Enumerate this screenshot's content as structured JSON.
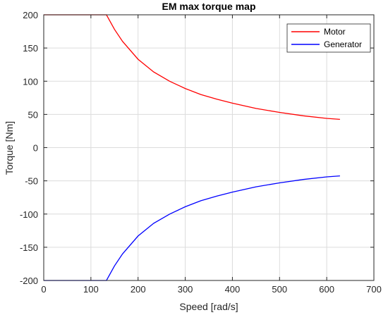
{
  "chart_data": {
    "type": "line",
    "title": "EM max torque map",
    "xlabel": "Speed [rad/s]",
    "ylabel": "Torque [Nm]",
    "xlim": [
      0,
      700
    ],
    "ylim": [
      -200,
      200
    ],
    "xticks": [
      "0",
      "100",
      "200",
      "300",
      "400",
      "500",
      "600",
      "700"
    ],
    "yticks": [
      "-200",
      "-150",
      "-100",
      "-50",
      "0",
      "50",
      "100",
      "150",
      "200"
    ],
    "grid": true,
    "legend_position": "top-right",
    "series": [
      {
        "name": "Motor",
        "color": "#ff0000",
        "x": [
          0,
          50,
          100,
          133,
          150,
          167,
          200,
          233,
          267,
          300,
          333,
          367,
          400,
          450,
          500,
          550,
          600,
          628
        ],
        "y": [
          200,
          200,
          200,
          200,
          178,
          160,
          133,
          114,
          100,
          89,
          80,
          73,
          67,
          59,
          53,
          48,
          44,
          42.5
        ]
      },
      {
        "name": "Generator",
        "color": "#0000ff",
        "x": [
          0,
          50,
          100,
          133,
          150,
          167,
          200,
          233,
          267,
          300,
          333,
          367,
          400,
          450,
          500,
          550,
          600,
          628
        ],
        "y": [
          -200,
          -200,
          -200,
          -200,
          -178,
          -160,
          -133,
          -114,
          -100,
          -89,
          -80,
          -73,
          -67,
          -59,
          -53,
          -48,
          -44,
          -42.5
        ]
      }
    ]
  }
}
